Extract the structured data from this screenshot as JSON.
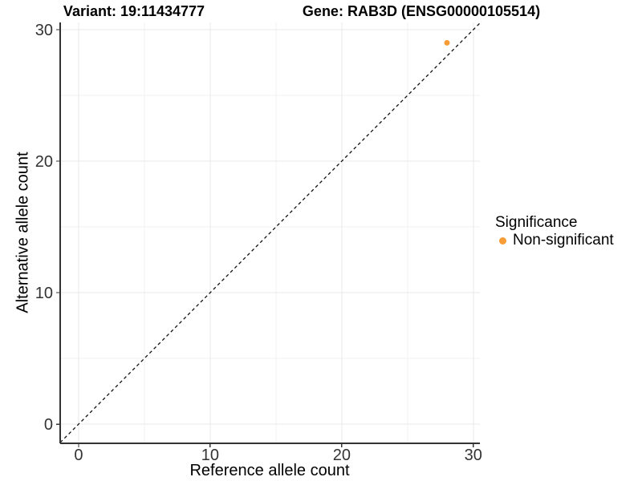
{
  "titles": {
    "variant": "Variant: 19:11434777",
    "gene": "Gene: RAB3D (ENSG00000105514)"
  },
  "legend": {
    "title": "Significance",
    "items": [
      {
        "label": "Non-significant",
        "color": "#F89C35"
      }
    ]
  },
  "colors": {
    "background": "#FFFFFF",
    "grid_major": "#E8E8E8",
    "grid_minor": "#F2F2F2",
    "axis_line": "#333333",
    "tick_label": "#333333",
    "reference_line": "#111111",
    "point": "#F89C35"
  },
  "chart_data": {
    "type": "scatter",
    "title_left": "Variant: 19:11434777",
    "title_right": "Gene: RAB3D (ENSG00000105514)",
    "xlabel": "Reference allele count",
    "ylabel": "Alternative allele count",
    "xlim": [
      -1.4,
      30.5
    ],
    "ylim": [
      -1.46,
      30.55
    ],
    "x_ticks": [
      0,
      10,
      20,
      30
    ],
    "y_ticks": [
      0,
      10,
      20,
      30
    ],
    "x_minor": [
      5,
      15,
      25
    ],
    "y_minor": [
      5,
      15,
      25
    ],
    "grid": true,
    "legend_position": "right-middle",
    "series": [
      {
        "name": "Non-significant",
        "color": "#F89C35",
        "points": [
          {
            "x": 28,
            "y": 29
          }
        ]
      }
    ],
    "reference_line": {
      "type": "identity",
      "equation": "y = x",
      "style": "dashed",
      "color": "#111111"
    }
  }
}
